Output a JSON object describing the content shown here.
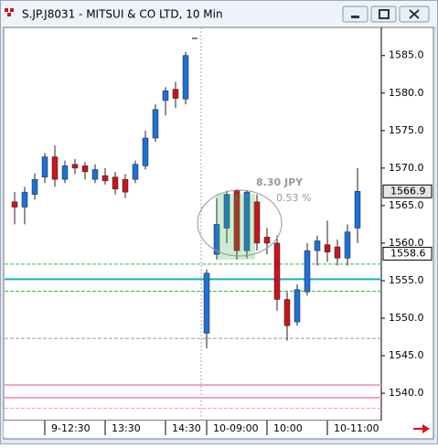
{
  "window_title": "S.JP.J8031 - MITSUI & CO LTD, 10 Min",
  "chart_data": {
    "type": "candlestick",
    "categories": [
      null,
      null,
      null,
      "9-12:30",
      null,
      null,
      null,
      null,
      null,
      "13:30",
      null,
      null,
      null,
      null,
      null,
      "14:30",
      null,
      null,
      "10-09:00",
      null,
      null,
      null,
      null,
      null,
      "10:00",
      null,
      null,
      null,
      null,
      null,
      "10-11:00",
      null,
      null,
      null
    ],
    "open": [
      1565.5,
      1564.8,
      1566.5,
      1568.8,
      1571.5,
      1568.5,
      1570.5,
      1570.3,
      1568.5,
      1569.0,
      1568.8,
      1568.5,
      1568.5,
      1570.3,
      1574.0,
      1579.0,
      1580.5,
      1579.2,
      1548.0,
      1558.5,
      1562.0,
      1567.0,
      1559.0,
      1565.5,
      1560.8,
      1560.0,
      1552.5,
      1549.5,
      1553.5,
      1559.0,
      1559.8,
      1559.5,
      1558.0,
      1562.0
    ],
    "high": [
      1566.8,
      1567.5,
      1569.3,
      1572.0,
      1573.0,
      1571.0,
      1571.2,
      1570.8,
      1570.5,
      1570.0,
      1569.5,
      1569.2,
      1571.0,
      1575.0,
      1578.5,
      1580.8,
      1581.5,
      1585.5,
      1556.5,
      1566.0,
      1567.0,
      1567.2,
      1567.0,
      1566.5,
      1562.0,
      1561.0,
      1553.5,
      1554.5,
      1560.0,
      1561.0,
      1563.0,
      1560.5,
      1562.5,
      1570.0
    ],
    "low": [
      1562.5,
      1562.5,
      1565.8,
      1568.0,
      1567.5,
      1568.0,
      1569.2,
      1568.5,
      1568.0,
      1567.8,
      1566.5,
      1566.0,
      1568.0,
      1569.8,
      1573.5,
      1577.0,
      1578.0,
      1578.5,
      1546.0,
      1557.8,
      1560.0,
      1557.8,
      1558.0,
      1559.0,
      1558.5,
      1551.0,
      1547.0,
      1549.0,
      1553.0,
      1557.0,
      1557.5,
      1557.0,
      1557.0,
      1560.0
    ],
    "close": [
      1564.8,
      1566.8,
      1568.5,
      1571.5,
      1568.5,
      1570.3,
      1570.0,
      1569.5,
      1569.8,
      1568.3,
      1567.2,
      1566.8,
      1570.5,
      1574.0,
      1577.8,
      1580.3,
      1579.3,
      1585.0,
      1556.0,
      1562.5,
      1566.5,
      1559.0,
      1566.8,
      1560.0,
      1560.0,
      1552.5,
      1549.0,
      1553.8,
      1559.0,
      1560.3,
      1558.8,
      1558.0,
      1561.5,
      1566.9
    ],
    "up_color": "#1f6fd6",
    "down_color": "#c8141e",
    "ylim": [
      1536.6,
      1588.5
    ],
    "yticks": [
      {
        "value": 1540,
        "label": "1540.0"
      },
      {
        "value": 1545,
        "label": "1545.0"
      },
      {
        "value": 1550,
        "label": "1550.0"
      },
      {
        "value": 1555,
        "label": "1555.0"
      },
      {
        "value": 1560,
        "label": "1560.0"
      },
      {
        "value": 1565,
        "label": "1565.0"
      },
      {
        "value": 1570,
        "label": "1570.0"
      },
      {
        "value": 1575,
        "label": "1575.0"
      },
      {
        "value": 1580,
        "label": "1580.0"
      },
      {
        "value": 1585,
        "label": "1585.0"
      }
    ],
    "price_labels": [
      1566.9,
      1558.6
    ],
    "levels": [
      {
        "value": 1557.2,
        "color": "#3cb44b",
        "dashed": true
      },
      {
        "value": 1555.2,
        "color": "#17b3b8",
        "dashed": false
      },
      {
        "value": 1553.6,
        "color": "#3cb44b",
        "dashed": true
      },
      {
        "value": 1547.3,
        "color": "#999999",
        "dashed": true
      },
      {
        "value": 1541.1,
        "color": "#f0a0c8",
        "dashed": false
      },
      {
        "value": 1539.4,
        "color": "#f0a0c8",
        "dashed": false
      },
      {
        "value": 1538.0,
        "color": "#f0a0c8",
        "dashed": true
      }
    ],
    "annotations": [
      "8.30 JPY",
      "0.53 %"
    ]
  }
}
